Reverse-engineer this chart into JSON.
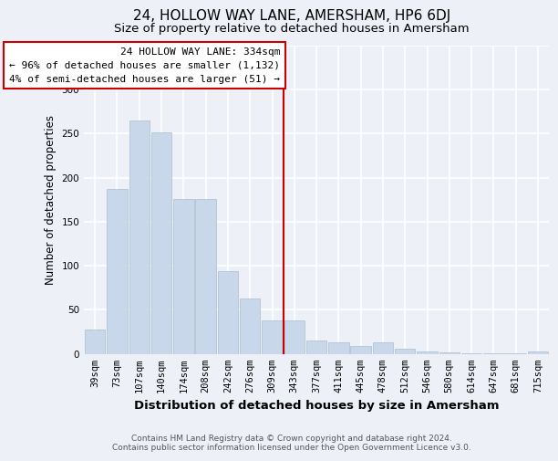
{
  "title": "24, HOLLOW WAY LANE, AMERSHAM, HP6 6DJ",
  "subtitle": "Size of property relative to detached houses in Amersham",
  "xlabel": "Distribution of detached houses by size in Amersham",
  "ylabel": "Number of detached properties",
  "footnote": "Contains HM Land Registry data © Crown copyright and database right 2024.\nContains public sector information licensed under the Open Government Licence v3.0.",
  "bin_labels": [
    "39sqm",
    "73sqm",
    "107sqm",
    "140sqm",
    "174sqm",
    "208sqm",
    "242sqm",
    "276sqm",
    "309sqm",
    "343sqm",
    "377sqm",
    "411sqm",
    "445sqm",
    "478sqm",
    "512sqm",
    "546sqm",
    "580sqm",
    "614sqm",
    "647sqm",
    "681sqm",
    "715sqm"
  ],
  "bar_heights": [
    28,
    187,
    265,
    252,
    176,
    176,
    94,
    63,
    38,
    38,
    15,
    13,
    9,
    13,
    6,
    3,
    2,
    1,
    1,
    1,
    3
  ],
  "bar_color": "#c8d8ea",
  "bar_edge_color": "#aabdcc",
  "vline_x_index": 9,
  "vline_color": "#cc0000",
  "annotation_title": "24 HOLLOW WAY LANE: 334sqm",
  "annotation_line1": "← 96% of detached houses are smaller (1,132)",
  "annotation_line2": "4% of semi-detached houses are larger (51) →",
  "annotation_box_color": "#cc0000",
  "annotation_bg": "#ffffff",
  "ylim": [
    0,
    350
  ],
  "background_color": "#edf1f7",
  "grid_color": "#ffffff",
  "title_fontsize": 11,
  "subtitle_fontsize": 9.5,
  "axis_label_fontsize": 8.5,
  "tick_fontsize": 7.5,
  "annotation_fontsize": 8,
  "footnote_fontsize": 6.5
}
